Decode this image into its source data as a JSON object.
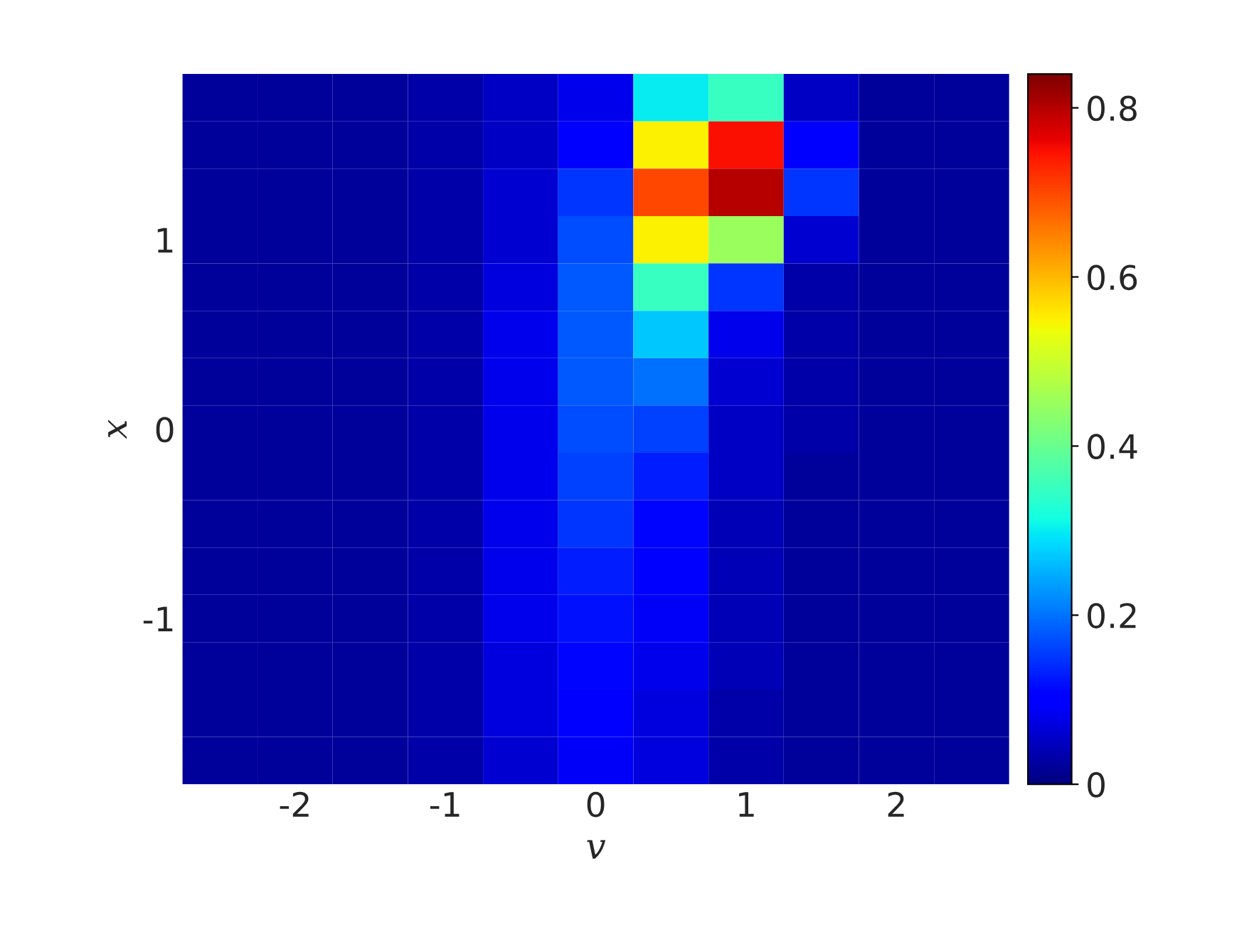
{
  "chart_data": {
    "type": "heatmap",
    "xlabel": "v",
    "ylabel": "x",
    "categories": [
      null,
      "-2",
      null,
      "-1",
      null,
      "0",
      null,
      "1",
      null,
      "2",
      null
    ],
    "y_categories": [
      null,
      null,
      null,
      "1",
      null,
      null,
      null,
      "0",
      null,
      null,
      null,
      "-1",
      null,
      null,
      null
    ],
    "cells": [
      [
        0.02,
        0.02,
        0.02,
        0.03,
        0.05,
        0.08,
        0.3,
        0.35,
        0.05,
        0.02,
        0.02
      ],
      [
        0.02,
        0.02,
        0.02,
        0.03,
        0.05,
        0.1,
        0.55,
        0.75,
        0.1,
        0.02,
        0.02
      ],
      [
        0.02,
        0.02,
        0.02,
        0.03,
        0.06,
        0.15,
        0.7,
        0.8,
        0.15,
        0.02,
        0.02
      ],
      [
        0.02,
        0.02,
        0.02,
        0.03,
        0.06,
        0.17,
        0.55,
        0.45,
        0.06,
        0.02,
        0.02
      ],
      [
        0.02,
        0.02,
        0.02,
        0.03,
        0.07,
        0.18,
        0.35,
        0.15,
        0.03,
        0.02,
        0.02
      ],
      [
        0.02,
        0.02,
        0.02,
        0.03,
        0.08,
        0.18,
        0.27,
        0.08,
        0.03,
        0.02,
        0.02
      ],
      [
        0.02,
        0.02,
        0.02,
        0.03,
        0.08,
        0.18,
        0.2,
        0.06,
        0.03,
        0.02,
        0.02
      ],
      [
        0.02,
        0.02,
        0.02,
        0.03,
        0.08,
        0.17,
        0.16,
        0.05,
        0.03,
        0.02,
        0.02
      ],
      [
        0.02,
        0.02,
        0.02,
        0.03,
        0.08,
        0.16,
        0.13,
        0.05,
        0.02,
        0.02,
        0.02
      ],
      [
        0.02,
        0.02,
        0.02,
        0.03,
        0.08,
        0.15,
        0.11,
        0.04,
        0.02,
        0.02,
        0.02
      ],
      [
        0.02,
        0.02,
        0.02,
        0.03,
        0.08,
        0.13,
        0.1,
        0.04,
        0.02,
        0.02,
        0.02
      ],
      [
        0.02,
        0.02,
        0.02,
        0.03,
        0.08,
        0.12,
        0.09,
        0.04,
        0.02,
        0.02,
        0.02
      ],
      [
        0.02,
        0.02,
        0.02,
        0.03,
        0.07,
        0.11,
        0.08,
        0.04,
        0.02,
        0.02,
        0.02
      ],
      [
        0.02,
        0.02,
        0.02,
        0.03,
        0.07,
        0.1,
        0.07,
        0.03,
        0.02,
        0.02,
        0.02
      ],
      [
        0.02,
        0.02,
        0.02,
        0.03,
        0.06,
        0.09,
        0.07,
        0.03,
        0.02,
        0.02,
        0.02
      ]
    ],
    "clim": [
      0,
      0.84
    ],
    "cticks": [
      0,
      0.2,
      0.4,
      0.6,
      0.8
    ]
  }
}
